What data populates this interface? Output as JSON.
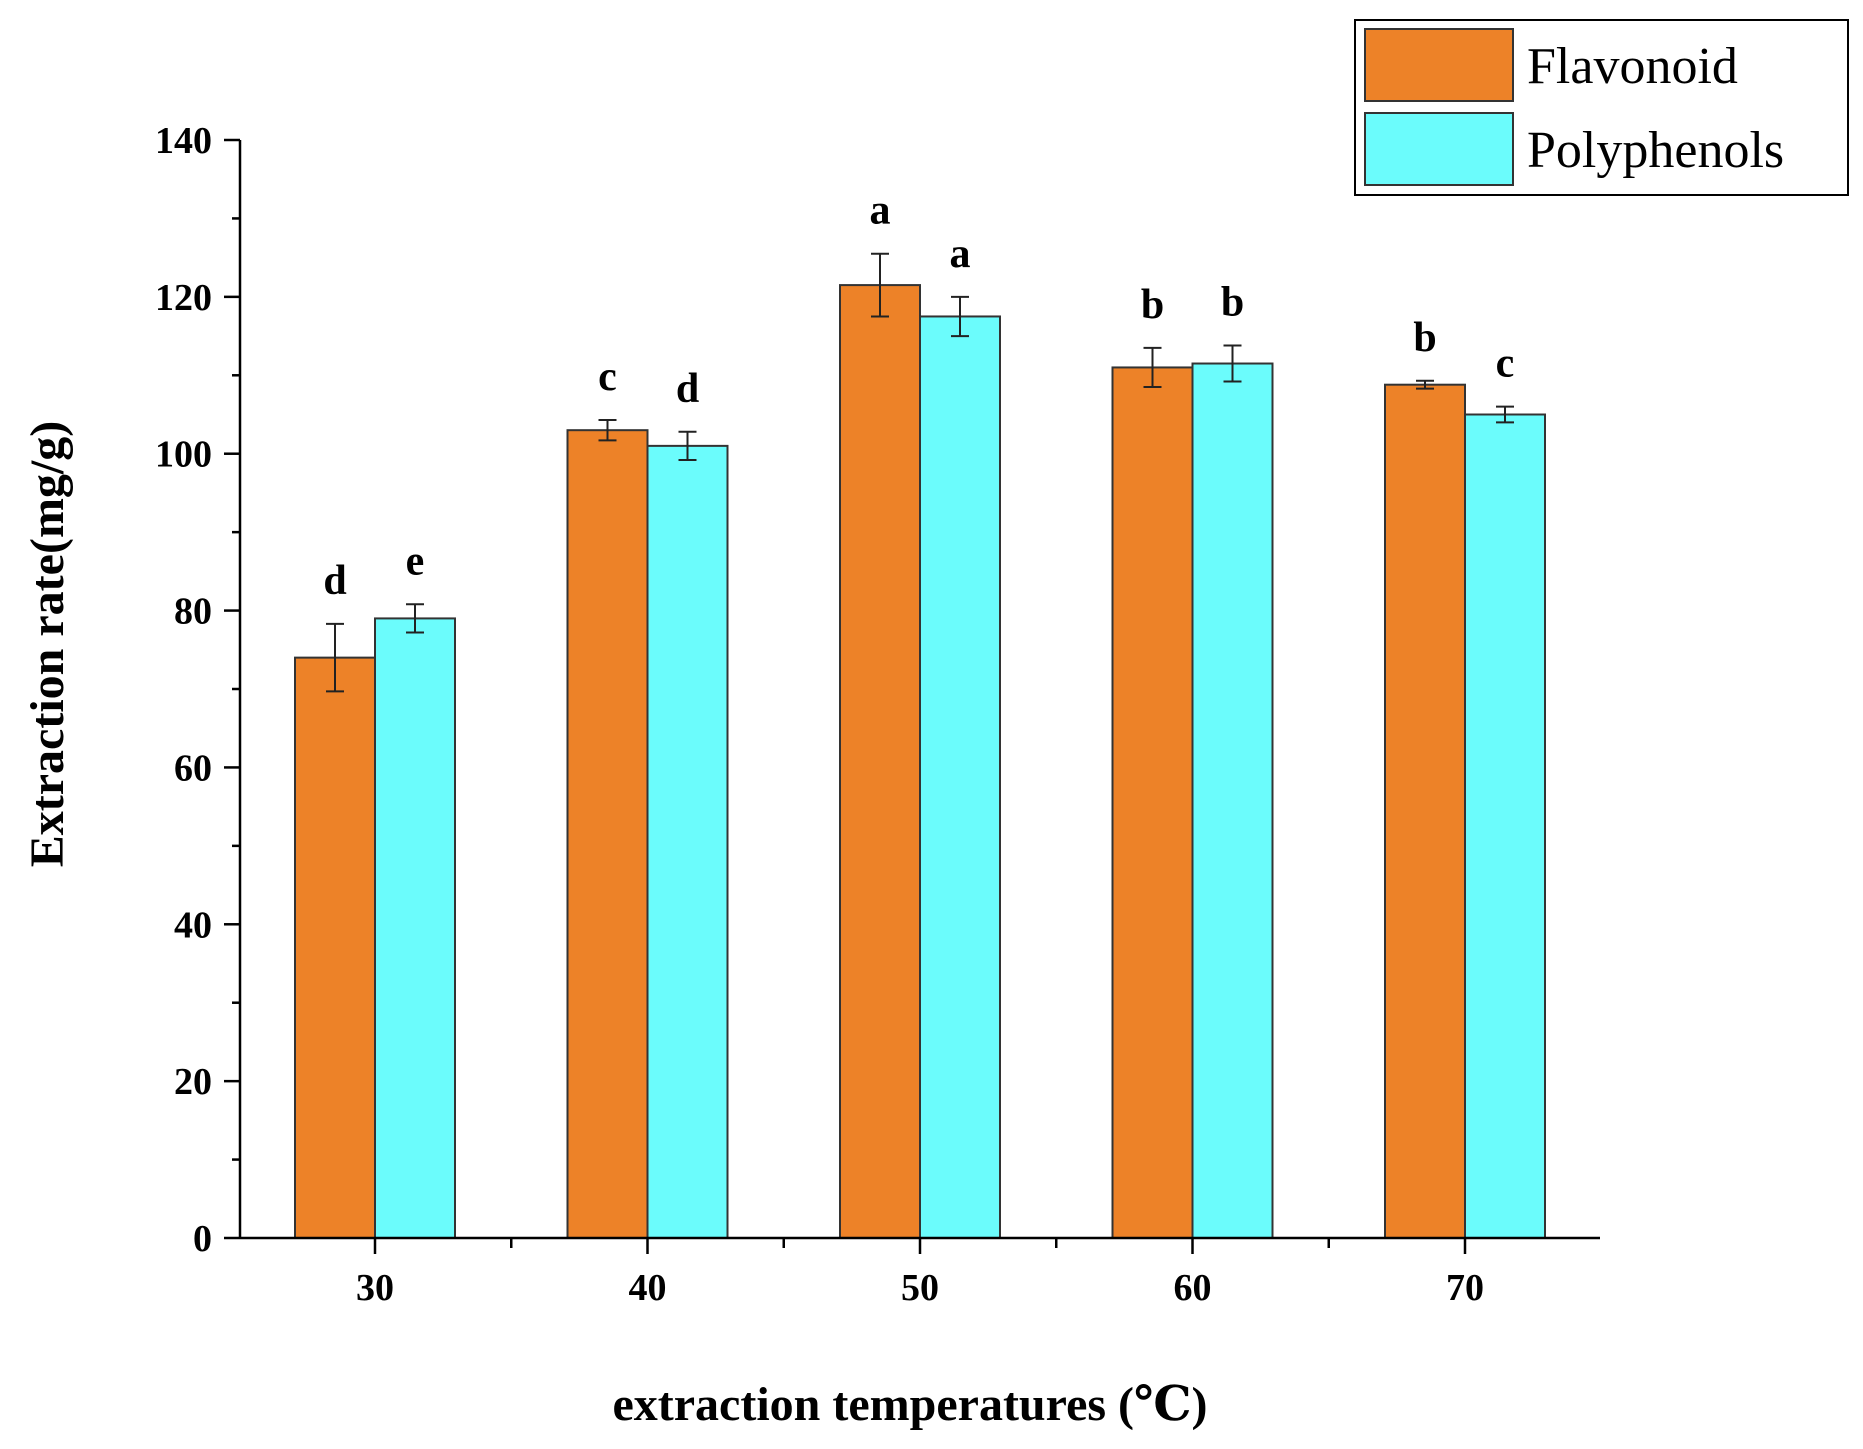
{
  "chart_data": {
    "type": "bar",
    "title": "",
    "xlabel": "extraction temperatures (℃)",
    "ylabel": "Extraction rate(mg/g)",
    "ylim": [
      0,
      140
    ],
    "yticks": [
      0,
      20,
      40,
      60,
      80,
      100,
      120,
      140
    ],
    "categories": [
      "30",
      "40",
      "50",
      "60",
      "70"
    ],
    "series": [
      {
        "name": "Flavonoid",
        "color": "#ED8228",
        "values": [
          74,
          103,
          121.5,
          111,
          108.8
        ],
        "errors": [
          4.3,
          1.3,
          4.0,
          2.5,
          0.5
        ],
        "labels": [
          "d",
          "c",
          "a",
          "b",
          "b"
        ]
      },
      {
        "name": "Polyphenols",
        "color": "#6BFCFC",
        "values": [
          79,
          101,
          117.5,
          111.5,
          105
        ],
        "errors": [
          1.8,
          1.8,
          2.5,
          2.3,
          1.0
        ],
        "labels": [
          "e",
          "d",
          "a",
          "b",
          "c"
        ]
      }
    ],
    "legend_position": "top-right",
    "grid": false
  }
}
